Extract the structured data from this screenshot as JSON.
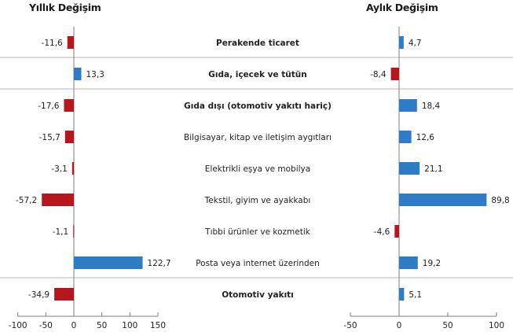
{
  "chart_data": [
    {
      "type": "bar",
      "orientation": "horizontal",
      "title": "Yıllık Değişim",
      "categories": [
        "Perakende ticaret",
        "Gıda, içecek ve tütün",
        "Gıda dışı (otomotiv yakıtı hariç)",
        "Bilgisayar, kitap ve iletişim aygıtları",
        "Elektrikli eşya ve mobilya",
        "Tekstil, giyim ve ayakkabı",
        "Tıbbi ürünler ve kozmetik",
        "Posta veya internet üzerinden",
        "Otomotiv yakıtı"
      ],
      "values": [
        -11.6,
        13.3,
        -17.6,
        -15.7,
        -3.1,
        -57.2,
        -1.1,
        122.7,
        -34.9
      ],
      "value_labels": [
        "-11,6",
        "13,3",
        "-17,6",
        "-15,7",
        "-3,1",
        "-57,2",
        "-1,1",
        "122,7",
        "-34,9"
      ],
      "xlim": [
        -100,
        150
      ],
      "ticks": [
        -100,
        -50,
        0,
        50,
        100,
        150
      ],
      "tick_labels": [
        "-100",
        "-50",
        "0",
        "50",
        "100",
        "150"
      ],
      "xlabel": "",
      "ylabel": "",
      "grid": false,
      "legend": "none"
    },
    {
      "type": "bar",
      "orientation": "horizontal",
      "title": "Aylık Değişim",
      "categories": [
        "Perakende ticaret",
        "Gıda, içecek ve tütün",
        "Gıda dışı (otomotiv yakıtı hariç)",
        "Bilgisayar, kitap ve iletişim aygıtları",
        "Elektrikli eşya ve mobilya",
        "Tekstil, giyim ve ayakkabı",
        "Tıbbi ürünler ve kozmetik",
        "Posta veya internet üzerinden",
        "Otomotiv yakıtı"
      ],
      "values": [
        4.7,
        -8.4,
        18.4,
        12.6,
        21.1,
        89.8,
        -4.6,
        19.2,
        5.1
      ],
      "value_labels": [
        "4,7",
        "-8,4",
        "18,4",
        "12,6",
        "21,1",
        "89,8",
        "-4,6",
        "19,2",
        "5,1"
      ],
      "xlim": [
        -50,
        100
      ],
      "ticks": [
        -50,
        0,
        50,
        100
      ],
      "tick_labels": [
        "-50",
        "0",
        "50",
        "100"
      ],
      "xlabel": "",
      "ylabel": "",
      "grid": false,
      "legend": "none"
    }
  ],
  "bold_categories": [
    "Perakende ticaret",
    "Gıda, içecek ve tütün",
    "Gıda dışı (otomotiv yakıtı hariç)",
    "Otomotiv yakıtı"
  ],
  "colors": {
    "positive": "#2e7cc6",
    "negative": "#b5171c",
    "axis": "#7f7f7f",
    "separator": "#c8c8c8"
  }
}
